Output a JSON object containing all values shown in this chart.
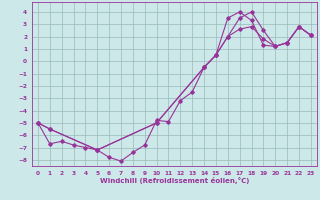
{
  "title": "",
  "xlabel": "Windchill (Refroidissement éolien,°C)",
  "bg_color": "#cce8e8",
  "grid_color": "#99bbbb",
  "line_color": "#993399",
  "spine_color": "#993399",
  "xlim": [
    -0.5,
    23.5
  ],
  "ylim": [
    -8.5,
    4.8
  ],
  "yticks": [
    4,
    3,
    2,
    1,
    0,
    -1,
    -2,
    -3,
    -4,
    -5,
    -6,
    -7,
    -8
  ],
  "xticks": [
    0,
    1,
    2,
    3,
    4,
    5,
    6,
    7,
    8,
    9,
    10,
    11,
    12,
    13,
    14,
    15,
    16,
    17,
    18,
    19,
    20,
    21,
    22,
    23
  ],
  "line1_x": [
    0,
    1,
    2,
    3,
    4,
    5,
    6,
    7,
    8,
    9,
    10,
    11,
    12,
    13,
    14,
    15,
    16,
    17,
    18,
    19,
    20,
    21,
    22,
    23
  ],
  "line1_y": [
    -5.0,
    -6.7,
    -6.5,
    -6.8,
    -7.0,
    -7.2,
    -7.8,
    -8.1,
    -7.4,
    -6.8,
    -4.8,
    -4.9,
    -3.2,
    -2.5,
    -0.5,
    0.5,
    3.5,
    4.0,
    3.3,
    1.3,
    1.2,
    1.5,
    2.8,
    2.1
  ],
  "line2_x": [
    0,
    1,
    5,
    10,
    14,
    15,
    16,
    17,
    18,
    19,
    20,
    21,
    22,
    23
  ],
  "line2_y": [
    -5.0,
    -5.5,
    -7.2,
    -5.0,
    -0.5,
    0.5,
    2.0,
    2.6,
    2.8,
    1.8,
    1.2,
    1.5,
    2.8,
    2.1
  ],
  "line3_x": [
    0,
    1,
    5,
    10,
    14,
    15,
    16,
    17,
    18,
    19,
    20,
    21,
    22,
    23
  ],
  "line3_y": [
    -5.0,
    -5.5,
    -7.2,
    -5.0,
    -0.5,
    0.5,
    2.0,
    3.5,
    4.0,
    2.5,
    1.2,
    1.5,
    2.8,
    2.1
  ],
  "marker_size": 1.8,
  "line_width": 0.8,
  "tick_fontsize": 4.2,
  "xlabel_fontsize": 5.0
}
